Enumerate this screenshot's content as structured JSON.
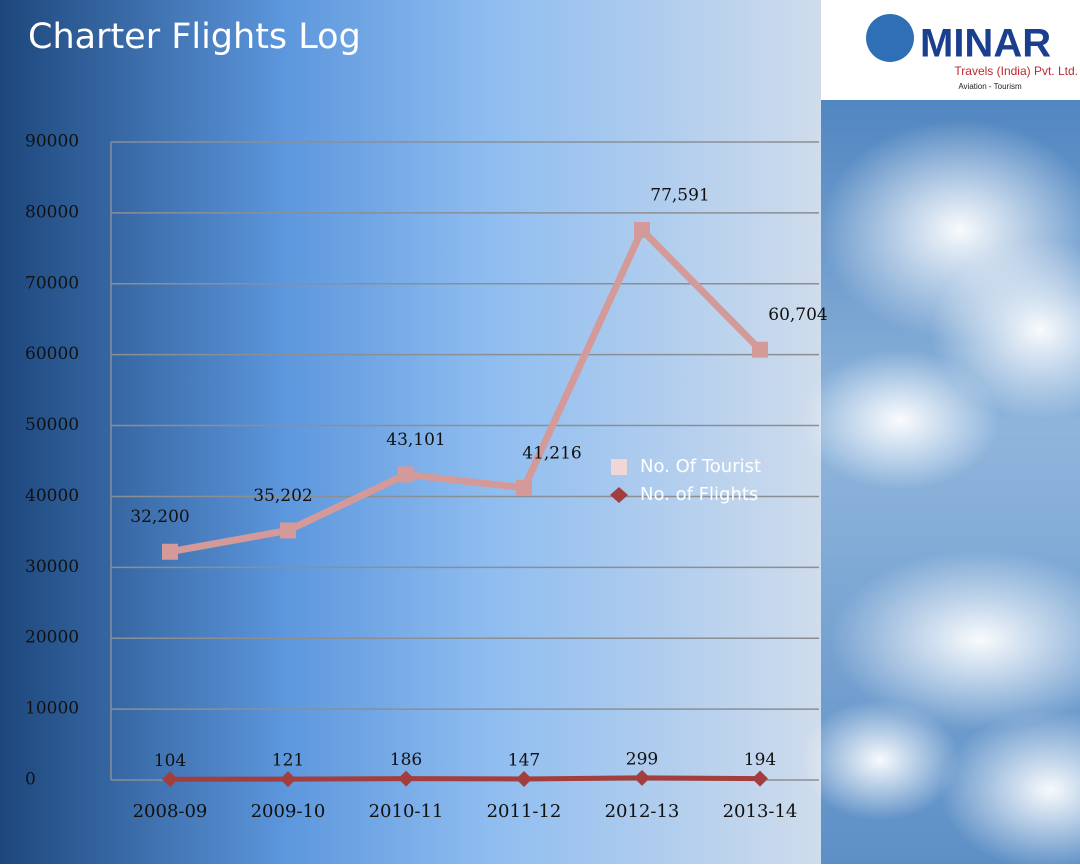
{
  "chart_data": {
    "type": "line",
    "title": "Charter Flights Log",
    "categories": [
      "2008-09",
      "2009-10",
      "2010-11",
      "2011-12",
      "2012-13",
      "2013-14"
    ],
    "series": [
      {
        "name": "No. Of Tourist",
        "color": "#d49a9a",
        "marker": "square",
        "values": [
          32200,
          35202,
          43101,
          41216,
          77591,
          60704
        ],
        "value_labels": [
          "32,200",
          "35,202",
          "43,101",
          "41,216",
          "77,591",
          "60,704"
        ]
      },
      {
        "name": "No. of Flights",
        "color": "#a23e3e",
        "marker": "diamond",
        "values": [
          104,
          121,
          186,
          147,
          299,
          194
        ]
      }
    ],
    "ylim": [
      0,
      90000
    ],
    "yticks": [
      0,
      10000,
      20000,
      30000,
      40000,
      50000,
      60000,
      70000,
      80000,
      90000
    ],
    "grid": true,
    "legend": "right"
  },
  "logo": {
    "name": "MINAR",
    "company": "Travels (India) Pvt. Ltd.",
    "tagline": "Aviation - Tourism"
  }
}
